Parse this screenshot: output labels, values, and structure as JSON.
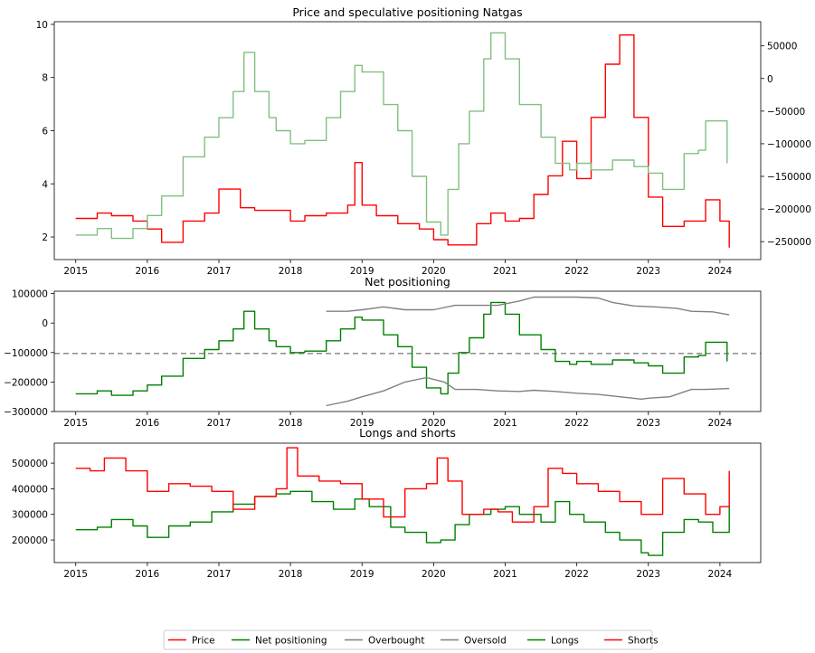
{
  "figure": {
    "legend": {
      "placement": "bottom-center",
      "entries": [
        {
          "label": "Price",
          "color": "#ff0000"
        },
        {
          "label": "Net positioning",
          "color": "#008000"
        },
        {
          "label": "Overbought",
          "color": "#808080"
        },
        {
          "label": "Oversold",
          "color": "#808080"
        },
        {
          "label": "Longs",
          "color": "#008000"
        },
        {
          "label": "Shorts",
          "color": "#ff0000"
        }
      ]
    }
  },
  "chart_data": [
    {
      "type": "line",
      "title": "Price and speculative positioning Natgas",
      "xlabel": "",
      "ylabel": "",
      "xlim": [
        2014.7,
        2024.57
      ],
      "x_ticks": [
        "2015",
        "2016",
        "2017",
        "2018",
        "2019",
        "2020",
        "2021",
        "2022",
        "2023",
        "2024"
      ],
      "y_left": {
        "lim": [
          1.15,
          10.1
        ],
        "ticks": [
          2,
          4,
          6,
          8,
          10
        ]
      },
      "y_right": {
        "lim": [
          -277500,
          87000
        ],
        "ticks": [
          -250000,
          -200000,
          -150000,
          -100000,
          -50000,
          0,
          50000
        ],
        "tick_labels": [
          "−250000",
          "−200000",
          "−150000",
          "−100000",
          "−50000",
          "0",
          "50000"
        ]
      },
      "grid": false,
      "series": [
        {
          "name": "Price",
          "axis": "left",
          "color": "#ff0000",
          "x": [
            2015.0,
            2015.3,
            2015.5,
            2015.8,
            2016.0,
            2016.2,
            2016.5,
            2016.8,
            2017.0,
            2017.3,
            2017.5,
            2017.8,
            2018.0,
            2018.2,
            2018.5,
            2018.8,
            2018.9,
            2019.0,
            2019.2,
            2019.5,
            2019.8,
            2020.0,
            2020.2,
            2020.4,
            2020.6,
            2020.8,
            2021.0,
            2021.2,
            2021.4,
            2021.6,
            2021.8,
            2022.0,
            2022.2,
            2022.4,
            2022.6,
            2022.8,
            2023.0,
            2023.2,
            2023.5,
            2023.8,
            2024.0,
            2024.13
          ],
          "y": [
            2.7,
            2.9,
            2.8,
            2.6,
            2.3,
            1.8,
            2.6,
            2.9,
            3.8,
            3.1,
            3.0,
            3.0,
            2.6,
            2.8,
            2.9,
            3.2,
            4.8,
            3.2,
            2.8,
            2.5,
            2.3,
            1.9,
            1.7,
            1.7,
            2.5,
            2.9,
            2.6,
            2.7,
            3.6,
            4.3,
            5.6,
            4.2,
            6.5,
            8.5,
            9.6,
            6.5,
            3.5,
            2.4,
            2.6,
            3.4,
            2.6,
            1.6
          ]
        },
        {
          "name": "Net positioning",
          "axis": "right",
          "color": "#80c080",
          "x": [
            2015.0,
            2015.3,
            2015.5,
            2015.8,
            2016.0,
            2016.2,
            2016.5,
            2016.8,
            2017.0,
            2017.2,
            2017.35,
            2017.5,
            2017.7,
            2017.8,
            2018.0,
            2018.2,
            2018.5,
            2018.7,
            2018.9,
            2019.0,
            2019.3,
            2019.5,
            2019.7,
            2019.9,
            2020.1,
            2020.2,
            2020.35,
            2020.5,
            2020.7,
            2020.8,
            2021.0,
            2021.2,
            2021.5,
            2021.7,
            2021.9,
            2022.0,
            2022.2,
            2022.5,
            2022.8,
            2023.0,
            2023.2,
            2023.5,
            2023.7,
            2023.8,
            2024.0,
            2024.1
          ],
          "y": [
            -240000,
            -230000,
            -245000,
            -230000,
            -210000,
            -180000,
            -120000,
            -90000,
            -60000,
            -20000,
            40000,
            -20000,
            -60000,
            -80000,
            -100000,
            -95000,
            -60000,
            -20000,
            20000,
            10000,
            -40000,
            -80000,
            -150000,
            -220000,
            -240000,
            -170000,
            -100000,
            -50000,
            30000,
            70000,
            30000,
            -40000,
            -90000,
            -130000,
            -140000,
            -130000,
            -140000,
            -125000,
            -135000,
            -145000,
            -170000,
            -115000,
            -110000,
            -65000,
            -65000,
            -130000
          ]
        }
      ]
    },
    {
      "type": "line",
      "title": "Net positioning",
      "xlabel": "",
      "ylabel": "",
      "xlim": [
        2014.7,
        2024.57
      ],
      "x_ticks": [
        "2015",
        "2016",
        "2017",
        "2018",
        "2019",
        "2020",
        "2021",
        "2022",
        "2023",
        "2024"
      ],
      "ylim": [
        -300000,
        108000
      ],
      "y_ticks": [
        -300000,
        -200000,
        -100000,
        0,
        100000
      ],
      "y_tick_labels": [
        "−300000",
        "−200000",
        "−100000",
        "0",
        "100000"
      ],
      "hline": {
        "y": -103000,
        "style": "dashed",
        "color": "#808080"
      },
      "grid": false,
      "series": [
        {
          "name": "Net positioning",
          "color": "#008000",
          "x": [
            2015.0,
            2015.3,
            2015.5,
            2015.8,
            2016.0,
            2016.2,
            2016.5,
            2016.8,
            2017.0,
            2017.2,
            2017.35,
            2017.5,
            2017.7,
            2017.8,
            2018.0,
            2018.2,
            2018.5,
            2018.7,
            2018.9,
            2019.0,
            2019.3,
            2019.5,
            2019.7,
            2019.9,
            2020.1,
            2020.2,
            2020.35,
            2020.5,
            2020.7,
            2020.8,
            2021.0,
            2021.2,
            2021.5,
            2021.7,
            2021.9,
            2022.0,
            2022.2,
            2022.5,
            2022.8,
            2023.0,
            2023.2,
            2023.5,
            2023.7,
            2023.8,
            2024.0,
            2024.1
          ],
          "y": [
            -240000,
            -230000,
            -245000,
            -230000,
            -210000,
            -180000,
            -120000,
            -90000,
            -60000,
            -20000,
            40000,
            -20000,
            -60000,
            -80000,
            -100000,
            -95000,
            -60000,
            -20000,
            20000,
            10000,
            -40000,
            -80000,
            -150000,
            -220000,
            -240000,
            -170000,
            -100000,
            -50000,
            30000,
            70000,
            30000,
            -40000,
            -90000,
            -130000,
            -140000,
            -130000,
            -140000,
            -125000,
            -135000,
            -145000,
            -170000,
            -115000,
            -110000,
            -65000,
            -65000,
            -130000
          ]
        },
        {
          "name": "Overbought",
          "color": "#808080",
          "x": [
            2018.5,
            2018.8,
            2019.0,
            2019.3,
            2019.6,
            2020.0,
            2020.3,
            2020.6,
            2020.9,
            2021.2,
            2021.4,
            2021.7,
            2022.0,
            2022.3,
            2022.5,
            2022.8,
            2023.1,
            2023.4,
            2023.6,
            2023.9,
            2024.13
          ],
          "y": [
            40000,
            40000,
            45000,
            55000,
            45000,
            45000,
            60000,
            60000,
            60000,
            75000,
            88000,
            88000,
            88000,
            85000,
            70000,
            58000,
            55000,
            50000,
            40000,
            38000,
            28000
          ]
        },
        {
          "name": "Oversold",
          "color": "#808080",
          "x": [
            2018.5,
            2018.8,
            2019.0,
            2019.3,
            2019.6,
            2019.9,
            2020.15,
            2020.3,
            2020.6,
            2020.9,
            2021.2,
            2021.4,
            2021.7,
            2022.0,
            2022.3,
            2022.6,
            2022.9,
            2023.0,
            2023.3,
            2023.6,
            2023.8,
            2024.13
          ],
          "y": [
            -280000,
            -265000,
            -250000,
            -230000,
            -200000,
            -185000,
            -200000,
            -225000,
            -225000,
            -230000,
            -232000,
            -228000,
            -232000,
            -238000,
            -242000,
            -250000,
            -258000,
            -255000,
            -250000,
            -225000,
            -225000,
            -222000
          ]
        }
      ]
    },
    {
      "type": "line",
      "title": "Longs and shorts",
      "xlabel": "",
      "ylabel": "",
      "xlim": [
        2014.7,
        2024.57
      ],
      "x_ticks": [
        "2015",
        "2016",
        "2017",
        "2018",
        "2019",
        "2020",
        "2021",
        "2022",
        "2023",
        "2024"
      ],
      "ylim": [
        112000,
        578000
      ],
      "y_ticks": [
        200000,
        300000,
        400000,
        500000
      ],
      "grid": false,
      "series": [
        {
          "name": "Longs",
          "color": "#008000",
          "x": [
            2015.0,
            2015.3,
            2015.5,
            2015.8,
            2016.0,
            2016.3,
            2016.6,
            2016.9,
            2017.2,
            2017.5,
            2017.8,
            2018.0,
            2018.3,
            2018.6,
            2018.9,
            2019.1,
            2019.4,
            2019.6,
            2019.9,
            2020.1,
            2020.3,
            2020.5,
            2020.8,
            2021.0,
            2021.2,
            2021.5,
            2021.7,
            2021.9,
            2022.1,
            2022.4,
            2022.6,
            2022.9,
            2023.0,
            2023.2,
            2023.5,
            2023.7,
            2023.9,
            2024.13
          ],
          "y": [
            240000,
            250000,
            280000,
            255000,
            210000,
            255000,
            270000,
            310000,
            340000,
            370000,
            380000,
            390000,
            350000,
            320000,
            360000,
            330000,
            250000,
            230000,
            190000,
            200000,
            260000,
            300000,
            320000,
            330000,
            300000,
            270000,
            350000,
            300000,
            270000,
            230000,
            200000,
            150000,
            140000,
            230000,
            280000,
            270000,
            230000,
            330000
          ]
        },
        {
          "name": "Shorts",
          "color": "#ff0000",
          "x": [
            2015.0,
            2015.2,
            2015.4,
            2015.7,
            2016.0,
            2016.3,
            2016.6,
            2016.9,
            2017.2,
            2017.5,
            2017.8,
            2017.95,
            2018.1,
            2018.4,
            2018.7,
            2019.0,
            2019.3,
            2019.6,
            2019.9,
            2020.05,
            2020.2,
            2020.4,
            2020.7,
            2020.9,
            2021.1,
            2021.4,
            2021.6,
            2021.8,
            2022.0,
            2022.3,
            2022.6,
            2022.9,
            2023.0,
            2023.2,
            2023.5,
            2023.8,
            2024.0,
            2024.13
          ],
          "y": [
            480000,
            470000,
            520000,
            470000,
            390000,
            420000,
            410000,
            390000,
            320000,
            370000,
            400000,
            560000,
            450000,
            430000,
            420000,
            360000,
            290000,
            400000,
            420000,
            520000,
            430000,
            300000,
            320000,
            310000,
            270000,
            330000,
            480000,
            460000,
            420000,
            390000,
            350000,
            300000,
            300000,
            440000,
            380000,
            300000,
            330000,
            470000
          ]
        }
      ]
    }
  ]
}
